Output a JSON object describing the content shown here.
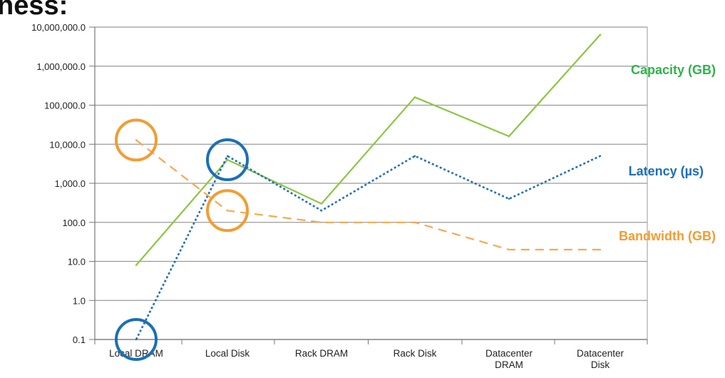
{
  "header_fragment": "ness:",
  "chart_data": {
    "type": "line",
    "y_scale": "log",
    "ylim": [
      0.1,
      10000000
    ],
    "grid": true,
    "categories": [
      "Local DRAM",
      "Local Disk",
      "Rack DRAM",
      "Rack Disk",
      "Datacenter\nDRAM",
      "Datacenter\nDisk"
    ],
    "y_ticks": [
      "10,000,000.0",
      "1,000,000.0",
      "100,000.0",
      "10,000.0",
      "1,000.0",
      "100.0",
      "10.0",
      "1.0",
      "0.1"
    ],
    "y_tick_values": [
      10000000,
      1000000,
      100000,
      10000,
      1000,
      100,
      10,
      1,
      0.1
    ],
    "series": [
      {
        "name": "Capacity (GB)",
        "color": "#8cc63f",
        "style": "solid",
        "values": [
          8,
          4000,
          300,
          160000,
          16000,
          6400000
        ]
      },
      {
        "name": "Latency (µs)",
        "color": "#1f6fb5",
        "style": "dotted",
        "values": [
          0.1,
          5000,
          200,
          5000,
          400,
          5000
        ]
      },
      {
        "name": "Bandwidth (GB)",
        "color": "#f7a94b",
        "style": "dashed",
        "values": [
          12800,
          200,
          100,
          100,
          20,
          20
        ]
      }
    ],
    "annotations": [
      {
        "type": "circle",
        "color": "#f39c32",
        "category": 0,
        "value": 12800
      },
      {
        "type": "circle",
        "color": "#1a6fb8",
        "category": 1,
        "value": 4000
      },
      {
        "type": "circle",
        "color": "#f39c32",
        "category": 1,
        "value": 200
      },
      {
        "type": "circle",
        "color": "#1a6fb8",
        "category": 0,
        "value": 0.1
      }
    ],
    "label_colors": {
      "Capacity (GB)": "#2db34a",
      "Latency (µs)": "#1a6fb8",
      "Bandwidth (GB)": "#f39c32"
    }
  }
}
